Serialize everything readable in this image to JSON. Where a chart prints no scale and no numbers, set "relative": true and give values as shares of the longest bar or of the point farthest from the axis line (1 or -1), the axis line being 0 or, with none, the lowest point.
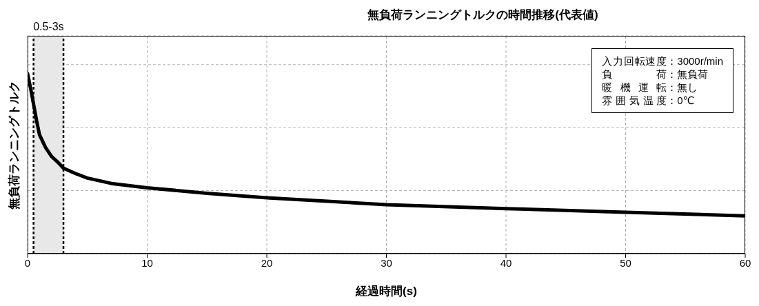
{
  "chart_data": {
    "type": "line",
    "title": "無負荷ランニングトルクの時間推移(代表値)",
    "xlabel": "経過時間(s)",
    "ylabel": "無負荷ランニングトルク",
    "relative": true,
    "x": [
      0,
      0.25,
      0.5,
      0.75,
      1,
      1.5,
      2,
      2.5,
      3,
      4,
      5,
      7,
      10,
      15,
      20,
      30,
      40,
      50,
      60
    ],
    "series": [
      {
        "color": "#000000",
        "values": [
          1.0,
          0.92,
          0.83,
          0.74,
          0.66,
          0.59,
          0.54,
          0.51,
          0.475,
          0.445,
          0.42,
          0.39,
          0.366,
          0.335,
          0.31,
          0.272,
          0.25,
          0.23,
          0.21
        ]
      }
    ],
    "xlim": [
      0,
      60
    ],
    "xticks": [
      0,
      10,
      20,
      30,
      40,
      50,
      60
    ],
    "bands": [
      {
        "axis": "x",
        "from": 0.5,
        "to": 3,
        "label": "0.5-3s",
        "color": "#e8e8e8"
      }
    ],
    "ref_lines": [
      {
        "axis": "x",
        "value": 0.5,
        "color": "#000000",
        "line_style": "dashed"
      },
      {
        "axis": "x",
        "value": 3,
        "color": "#000000",
        "line_style": "dashed"
      }
    ],
    "annotations": [
      "入力回転速度：3000r/min",
      "負荷：無負荷",
      "暖機運転：無し",
      "雰囲気温度：0℃"
    ],
    "grid": true,
    "marker": "none",
    "line_style": "solid"
  }
}
